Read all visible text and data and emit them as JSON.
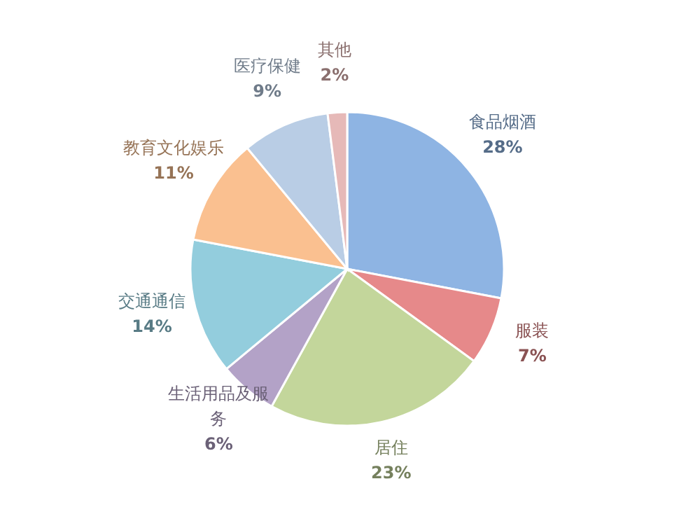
{
  "chart_data": {
    "type": "pie",
    "categories": [
      "食品烟酒",
      "服装",
      "居住",
      "生活用品及服务",
      "交通通信",
      "教育文化娱乐",
      "医疗保健",
      "其他"
    ],
    "values": [
      28,
      7,
      23,
      6,
      14,
      11,
      9,
      2
    ],
    "colors": [
      "#8eb4e3",
      "#e6898a",
      "#c3d69b",
      "#b3a2c7",
      "#93cddd",
      "#fac090",
      "#b9cde5",
      "#e6b9b8"
    ],
    "value_labels": [
      "28%",
      "7%",
      "23%",
      "6%",
      "14%",
      "11%",
      "9%",
      "2%"
    ]
  }
}
